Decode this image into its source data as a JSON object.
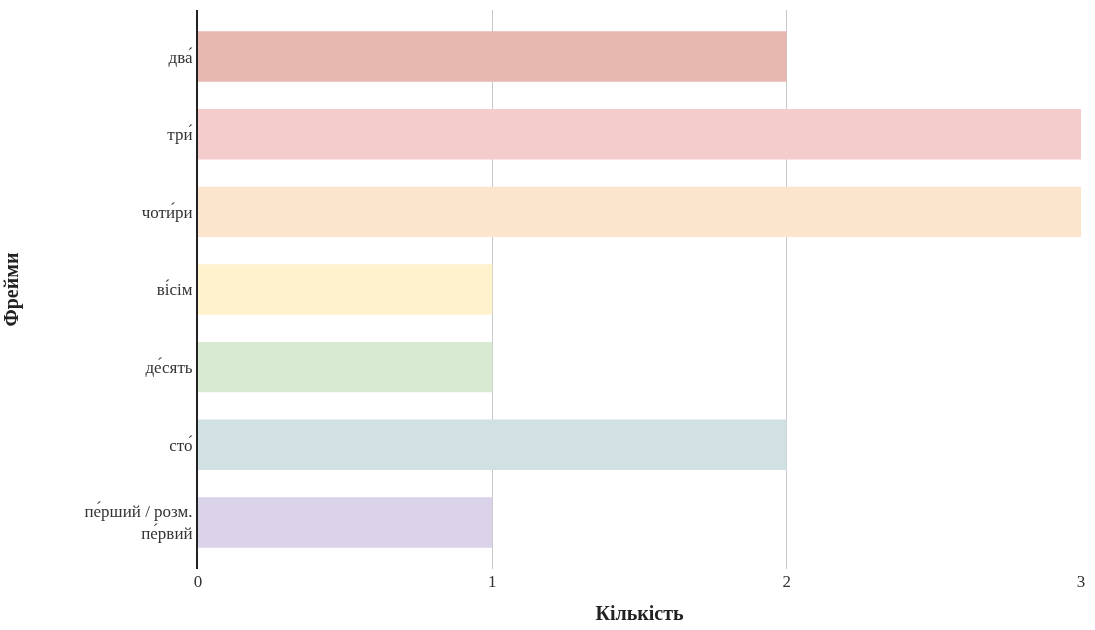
{
  "chart_data": {
    "type": "bar",
    "orientation": "horizontal",
    "xlabel": "Кількість",
    "ylabel": "Фрейми",
    "categories": [
      "два́",
      "три́",
      "чоти́ри",
      "ві́сім",
      "де́сять",
      "сто́",
      "пе́рший / розм.\nпе́рвий"
    ],
    "values": [
      2,
      3,
      3,
      1,
      1,
      2,
      1
    ],
    "colors": [
      "#e6b8af",
      "#f4cccc",
      "#fce5cd",
      "#fff2cc",
      "#d9ead3",
      "#d0e0e3",
      "#d9d2e9"
    ],
    "xlim": [
      0,
      3
    ],
    "xticks": [
      0,
      1,
      2,
      3
    ],
    "grid": "x",
    "legend": false
  }
}
